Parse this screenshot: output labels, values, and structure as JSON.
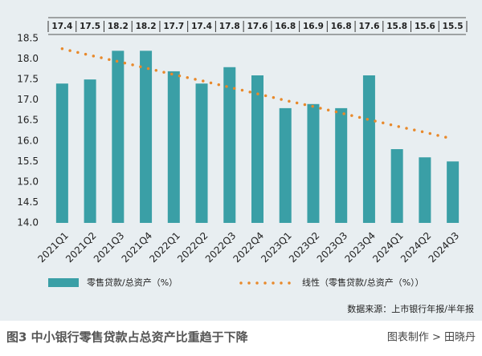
{
  "chart_data": {
    "type": "bar",
    "categories": [
      "2021Q1",
      "2021Q2",
      "2021Q3",
      "2021Q4",
      "2022Q1",
      "2022Q2",
      "2022Q3",
      "2022Q4",
      "2023Q1",
      "2023Q2",
      "2023Q3",
      "2023Q4",
      "2024Q1",
      "2024Q2",
      "2024Q3"
    ],
    "series": [
      {
        "name": "零售贷款/总资产（%）",
        "color": "#3a9fa6",
        "values": [
          17.4,
          17.5,
          18.2,
          18.2,
          17.7,
          17.4,
          17.8,
          17.6,
          16.8,
          16.9,
          16.8,
          17.6,
          15.8,
          15.6,
          15.5
        ]
      },
      {
        "name": "线性（零售贷款/总资产（%））",
        "color": "#e8892b",
        "type": "line",
        "style": "dotted",
        "values": [
          18.25,
          18.09,
          17.94,
          17.78,
          17.62,
          17.47,
          17.31,
          17.15,
          16.99,
          16.84,
          16.68,
          16.52,
          16.36,
          16.21,
          16.05
        ]
      }
    ],
    "ylim": [
      14.0,
      18.5
    ],
    "yticks": [
      {
        "value": 14.0,
        "label": "14.0"
      },
      {
        "value": 14.5,
        "label": "14.5"
      },
      {
        "value": 15.0,
        "label": "15.0"
      },
      {
        "value": 15.5,
        "label": "15.5"
      },
      {
        "value": 16.0,
        "label": "16.0"
      },
      {
        "value": 16.5,
        "label": "16.5"
      },
      {
        "value": 17.0,
        "label": "17.0"
      },
      {
        "value": 17.5,
        "label": "17.5"
      },
      {
        "value": 18.0,
        "label": "18.0"
      },
      {
        "value": 18.5,
        "label": "18.5"
      }
    ],
    "source": "数据来源：上市银行年报/半年报",
    "caption": "图3 中小银行零售贷款占总资产比重趋于下降",
    "credit": "图表制作 > 田晓丹"
  }
}
